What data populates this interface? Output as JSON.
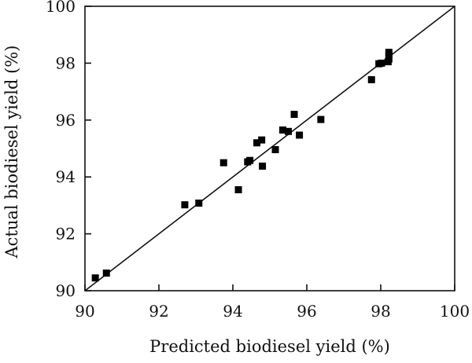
{
  "chart_data": {
    "type": "scatter",
    "title": "",
    "xlabel": "Predicted biodiesel yield (%)",
    "ylabel": "Actual biodiesel yield (%)",
    "xlim": [
      90,
      100
    ],
    "ylim": [
      90,
      100
    ],
    "xticks": [
      90,
      92,
      94,
      96,
      98,
      100
    ],
    "yticks": [
      90,
      92,
      94,
      96,
      98,
      100
    ],
    "xtick_labels": [
      "90",
      "92",
      "94",
      "96",
      "98",
      "100"
    ],
    "ytick_labels": [
      "90",
      "92",
      "94",
      "96",
      "98",
      "100"
    ],
    "grid": false,
    "reference_line": {
      "from": [
        90,
        90
      ],
      "to": [
        100,
        100
      ]
    },
    "series": [
      {
        "marker": "square",
        "color": "#000000",
        "points": [
          [
            90.28,
            90.45
          ],
          [
            90.58,
            90.62
          ],
          [
            92.7,
            93.02
          ],
          [
            93.08,
            93.08
          ],
          [
            93.75,
            94.5
          ],
          [
            94.15,
            93.55
          ],
          [
            94.4,
            94.53
          ],
          [
            94.46,
            94.58
          ],
          [
            94.65,
            95.2
          ],
          [
            94.78,
            95.3
          ],
          [
            94.8,
            94.38
          ],
          [
            95.15,
            94.96
          ],
          [
            95.35,
            95.65
          ],
          [
            95.5,
            95.6
          ],
          [
            95.66,
            96.2
          ],
          [
            95.8,
            95.47
          ],
          [
            96.38,
            96.02
          ],
          [
            97.75,
            97.42
          ],
          [
            97.95,
            97.98
          ],
          [
            98.02,
            98.0
          ],
          [
            98.2,
            98.05
          ],
          [
            98.22,
            98.15
          ],
          [
            98.22,
            98.3
          ],
          [
            98.22,
            98.38
          ]
        ]
      }
    ]
  }
}
